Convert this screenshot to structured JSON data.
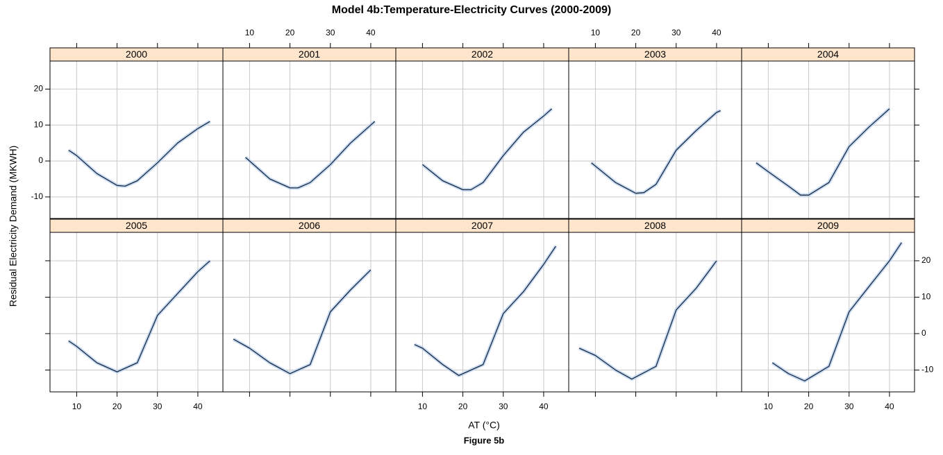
{
  "title": "Model 4b:Temperature-Electricity Curves (2000-2009)",
  "x_label": "AT (°C)",
  "y_label": "Residual Electricity Demand (MKWH)",
  "caption": "Figure 5b",
  "chart_data": [
    {
      "type": "line",
      "title": "2000",
      "color": "#1a2a40",
      "grid": true,
      "x": [
        8,
        10,
        15,
        20,
        22,
        25,
        30,
        35,
        40,
        43
      ],
      "values": [
        3,
        1.5,
        -3.5,
        -6.8,
        -7,
        -5.5,
        -0.5,
        5,
        9,
        11
      ],
      "xlim": [
        3.4,
        46.2
      ],
      "ylim": [
        -16,
        27.8
      ],
      "xticks": [
        10,
        20,
        30,
        40
      ],
      "yticks": [
        -10,
        0,
        10,
        20
      ]
    },
    {
      "type": "line",
      "title": "2001",
      "color": "#1a2a40",
      "grid": true,
      "x": [
        9,
        10,
        15,
        20,
        22,
        25,
        30,
        35,
        40,
        41
      ],
      "values": [
        1,
        0,
        -5,
        -7.5,
        -7.5,
        -6,
        -1,
        5,
        10,
        11
      ],
      "xlim": [
        3.4,
        46.2
      ],
      "ylim": [
        -16,
        27.8
      ],
      "xticks": [
        10,
        20,
        30,
        40
      ],
      "yticks": [
        -10,
        0,
        10,
        20
      ]
    },
    {
      "type": "line",
      "title": "2002",
      "color": "#1a2a40",
      "grid": true,
      "x": [
        10,
        15,
        20,
        22,
        25,
        30,
        35,
        40,
        42
      ],
      "values": [
        -1,
        -5.5,
        -8,
        -8,
        -6,
        1.5,
        8,
        12.5,
        14.5
      ],
      "xlim": [
        3.4,
        46.2
      ],
      "ylim": [
        -16,
        27.8
      ],
      "xticks": [
        10,
        20,
        30,
        40
      ],
      "yticks": [
        -10,
        0,
        10,
        20
      ]
    },
    {
      "type": "line",
      "title": "2003",
      "color": "#1a2a40",
      "grid": true,
      "x": [
        9,
        15,
        20,
        22,
        25,
        30,
        35,
        40,
        41
      ],
      "values": [
        -0.5,
        -6,
        -9,
        -8.8,
        -6.5,
        3,
        8.5,
        13.5,
        14
      ],
      "xlim": [
        3.4,
        46.2
      ],
      "ylim": [
        -16,
        27.8
      ],
      "xticks": [
        10,
        20,
        30,
        40
      ],
      "yticks": [
        -10,
        0,
        10,
        20
      ]
    },
    {
      "type": "line",
      "title": "2004",
      "color": "#1a2a40",
      "grid": true,
      "x": [
        7,
        10,
        15,
        18,
        20,
        25,
        30,
        35,
        40
      ],
      "values": [
        -0.5,
        -3,
        -7,
        -9.5,
        -9.5,
        -6,
        4,
        9.5,
        14.5
      ],
      "xlim": [
        3.4,
        46.2
      ],
      "ylim": [
        -16,
        27.8
      ],
      "xticks": [
        10,
        20,
        30,
        40
      ],
      "yticks": [
        -10,
        0,
        10,
        20
      ]
    },
    {
      "type": "line",
      "title": "2005",
      "color": "#1a2a40",
      "grid": true,
      "x": [
        8,
        10,
        15,
        20,
        25,
        30,
        35,
        40,
        43
      ],
      "values": [
        -2,
        -3.5,
        -8,
        -10.5,
        -8,
        5,
        11,
        17,
        20
      ],
      "xlim": [
        3.4,
        46.2
      ],
      "ylim": [
        -16,
        27.8
      ],
      "xticks": [
        10,
        20,
        30,
        40
      ],
      "yticks": [
        -10,
        0,
        10,
        20
      ]
    },
    {
      "type": "line",
      "title": "2006",
      "color": "#1a2a40",
      "grid": true,
      "x": [
        6,
        10,
        15,
        20,
        25,
        30,
        35,
        40
      ],
      "values": [
        -1.5,
        -4,
        -8,
        -11,
        -8.5,
        6,
        12,
        17.5
      ],
      "xlim": [
        3.4,
        46.2
      ],
      "ylim": [
        -16,
        27.8
      ],
      "xticks": [
        10,
        20,
        30,
        40
      ],
      "yticks": [
        -10,
        0,
        10,
        20
      ]
    },
    {
      "type": "line",
      "title": "2007",
      "color": "#1a2a40",
      "grid": true,
      "x": [
        8,
        10,
        15,
        19,
        25,
        30,
        35,
        40,
        43
      ],
      "values": [
        -3,
        -4,
        -8.5,
        -11.5,
        -8.5,
        5.5,
        11.5,
        19,
        24
      ],
      "xlim": [
        3.4,
        46.2
      ],
      "ylim": [
        -16,
        27.8
      ],
      "xticks": [
        10,
        20,
        30,
        40
      ],
      "yticks": [
        -10,
        0,
        10,
        20
      ]
    },
    {
      "type": "line",
      "title": "2008",
      "color": "#1a2a40",
      "grid": true,
      "x": [
        6,
        10,
        15,
        19,
        25,
        30,
        35,
        40
      ],
      "values": [
        -4,
        -6,
        -10,
        -12.5,
        -9,
        6.5,
        12.5,
        20
      ],
      "xlim": [
        3.4,
        46.2
      ],
      "ylim": [
        -16,
        27.8
      ],
      "xticks": [
        10,
        20,
        30,
        40
      ],
      "yticks": [
        -10,
        0,
        10,
        20
      ]
    },
    {
      "type": "line",
      "title": "2009",
      "color": "#1a2a40",
      "grid": true,
      "x": [
        11,
        15,
        19,
        25,
        30,
        35,
        40,
        43
      ],
      "values": [
        -8,
        -11,
        -13,
        -9,
        6,
        13,
        20,
        25
      ],
      "xlim": [
        3.4,
        46.2
      ],
      "ylim": [
        -16,
        27.8
      ],
      "xticks": [
        10,
        20,
        30,
        40
      ],
      "yticks": [
        -10,
        0,
        10,
        20
      ]
    }
  ]
}
